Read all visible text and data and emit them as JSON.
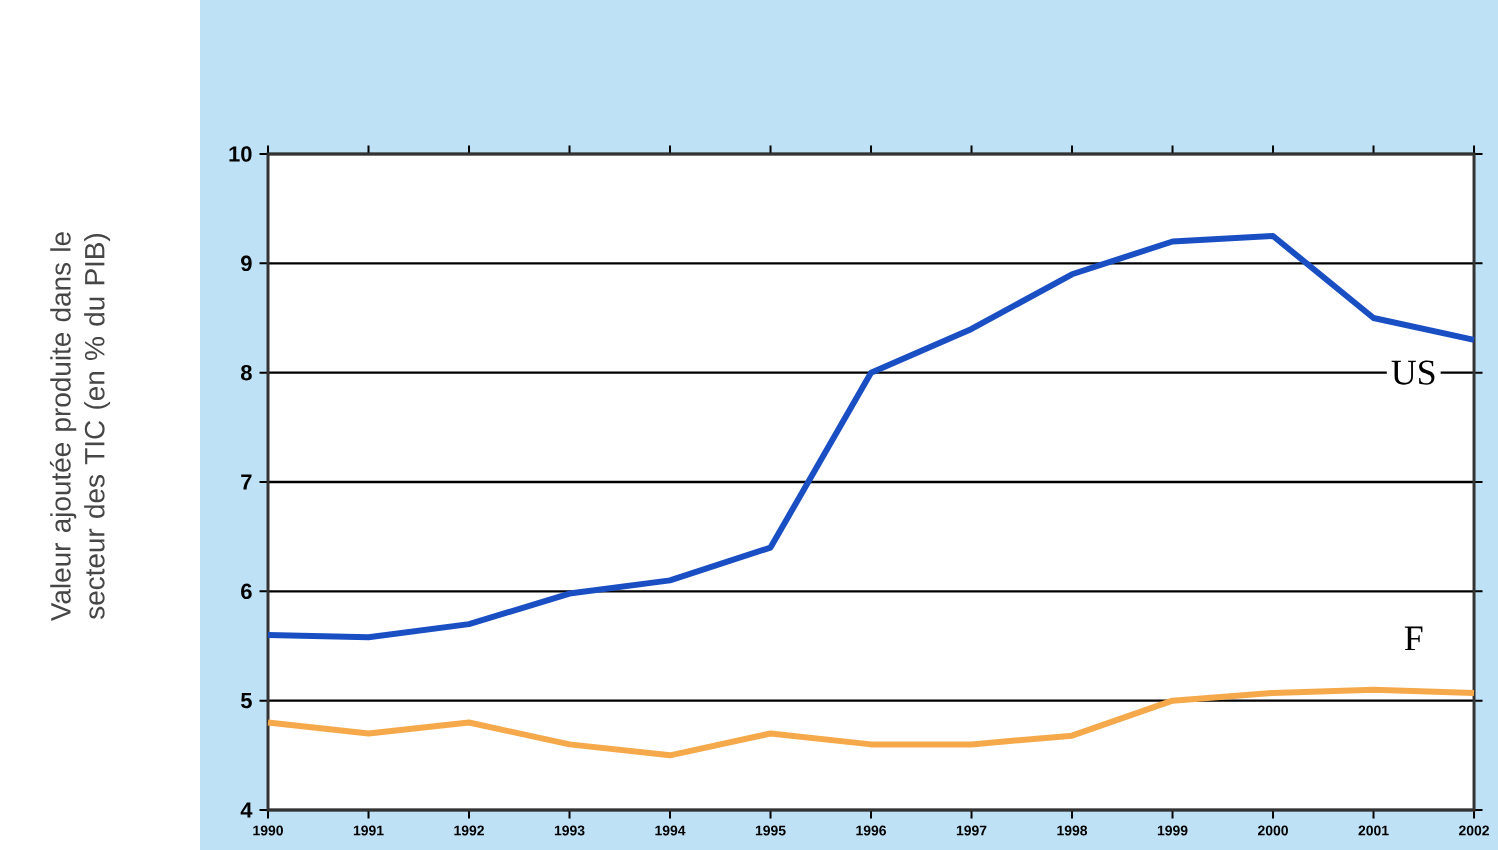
{
  "chart_data": {
    "type": "line",
    "ylabel": "Valeur ajoutée produite dans le secteur des TIC (en % du PIB)",
    "x": [
      1990,
      1991,
      1992,
      1993,
      1994,
      1995,
      1996,
      1997,
      1998,
      1999,
      2000,
      2001,
      2002
    ],
    "series": [
      {
        "name": "US",
        "color": "#1a4fc4",
        "values": [
          5.6,
          5.58,
          5.7,
          5.98,
          6.1,
          6.4,
          8.0,
          8.4,
          8.9,
          9.2,
          9.25,
          8.5,
          8.3
        ]
      },
      {
        "name": "F",
        "color": "#f5a94a",
        "values": [
          4.8,
          4.7,
          4.8,
          4.6,
          4.5,
          4.7,
          4.6,
          4.6,
          4.68,
          5.0,
          5.07,
          5.1,
          5.07
        ]
      }
    ],
    "xlim": [
      1990,
      2002
    ],
    "xticks": [
      1990,
      1991,
      1992,
      1993,
      1994,
      1995,
      1996,
      1997,
      1998,
      1999,
      2000,
      2001,
      2002
    ],
    "ylim": [
      4,
      10
    ],
    "yticks": [
      4,
      5,
      6,
      7,
      8,
      9,
      10
    ],
    "grid": "y",
    "legend": false,
    "marker": "none",
    "line_style": "solid"
  }
}
